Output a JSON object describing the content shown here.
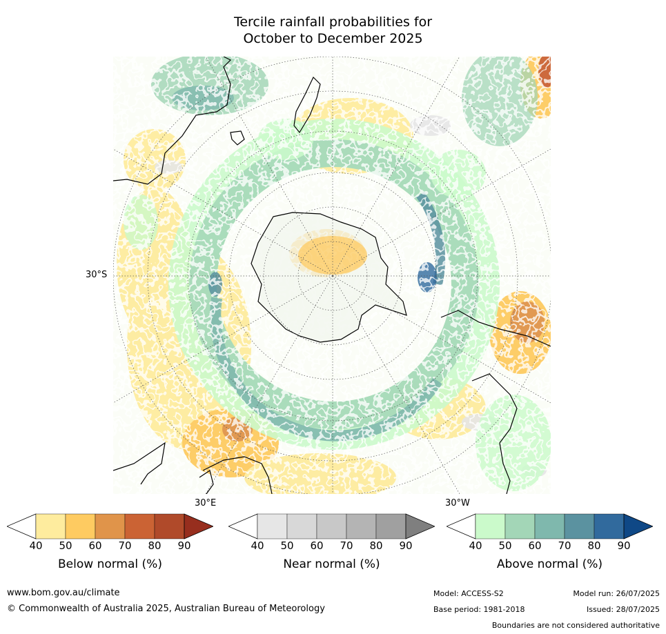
{
  "title": {
    "line1": "Tercile rainfall probabilities for",
    "line2": "October to December 2025"
  },
  "map": {
    "projection": "south-polar-stereographic",
    "labels": {
      "lat_30s": "30°S",
      "lon_30e": "30°E",
      "lon_30w": "30°W"
    }
  },
  "legends": [
    {
      "id": "below",
      "title": "Below normal (%)",
      "ticks": [
        "40",
        "50",
        "60",
        "70",
        "80",
        "90"
      ],
      "colors": [
        "#ffffff",
        "#feec9e",
        "#fecb61",
        "#e0944a",
        "#cb6334",
        "#b04a2a",
        "#972e1e"
      ]
    },
    {
      "id": "near",
      "title": "Near normal (%)",
      "ticks": [
        "40",
        "50",
        "60",
        "70",
        "80",
        "90"
      ],
      "colors": [
        "#ffffff",
        "#e6e6e6",
        "#d8d8d8",
        "#c8c8c8",
        "#b4b4b4",
        "#a0a0a0",
        "#7f7f7f"
      ]
    },
    {
      "id": "above",
      "title": "Above normal (%)",
      "ticks": [
        "40",
        "50",
        "60",
        "70",
        "80",
        "90"
      ],
      "colors": [
        "#ffffff",
        "#cbfacb",
        "#a3d6b7",
        "#7fb8ad",
        "#5b92a0",
        "#316a9d",
        "#0f4886"
      ]
    }
  ],
  "footer": {
    "url": "www.bom.gov.au/climate",
    "copyright": "© Commonwealth of Australia 2025, Australian Bureau of Meteorology",
    "model": "Model: ACCESS-S2",
    "base_period": "Base period: 1981-2018",
    "model_run": "Model run: 26/07/2025",
    "issued": "Issued: 28/07/2025",
    "disclaimer": "Boundaries are not considered authoritative"
  }
}
